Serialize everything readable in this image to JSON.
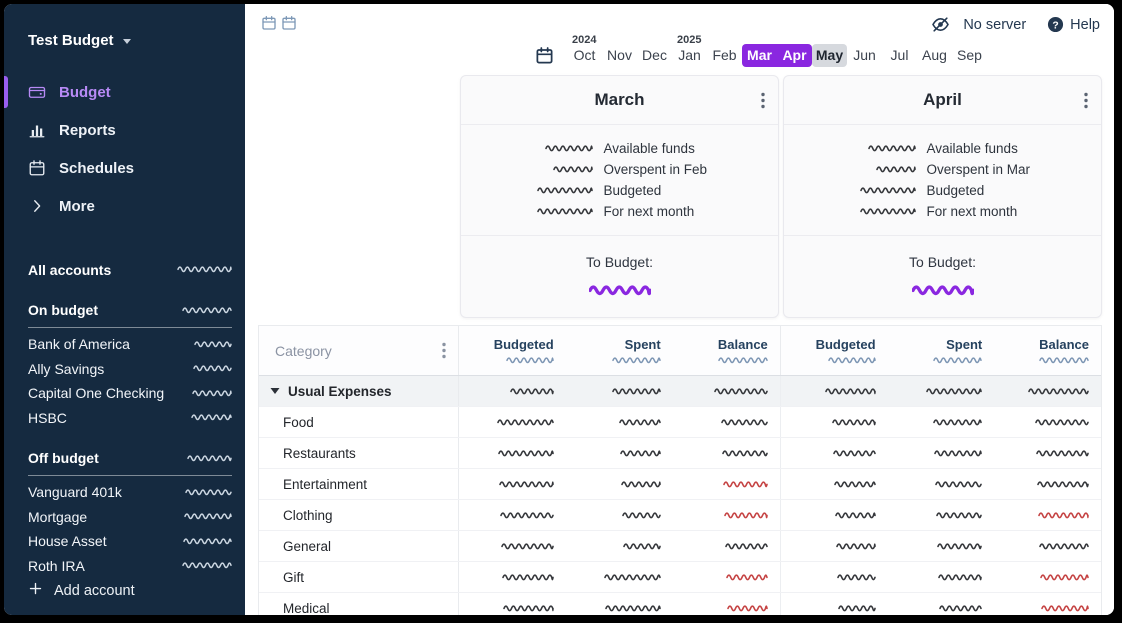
{
  "colors": {
    "sidebar_bg": "#152a40",
    "accent_purple": "#8a27e0",
    "active_purple_text": "#b78af5",
    "active_purple_bar": "#9a5ef0",
    "negative_red": "#c54343",
    "masked_dark": "#35373b",
    "masked_light": "#ccd7e2",
    "masked_header_blue": "#7c95b3",
    "masked_purple": "#8a27e0"
  },
  "sidebar": {
    "title": "Test Budget",
    "nav": [
      {
        "label": "Budget",
        "icon": "wallet-icon",
        "active": true
      },
      {
        "label": "Reports",
        "icon": "bar-chart-icon",
        "active": false
      },
      {
        "label": "Schedules",
        "icon": "calendar-icon",
        "active": false
      },
      {
        "label": "More",
        "icon": "chevron-right-icon",
        "active": false
      }
    ],
    "sections": [
      {
        "header": "All accounts",
        "value_masked": true,
        "divider": false,
        "accounts": []
      },
      {
        "header": "On budget",
        "value_masked": true,
        "divider": true,
        "accounts": [
          {
            "name": "Bank of America",
            "value_masked": true
          },
          {
            "name": "Ally Savings",
            "value_masked": true
          },
          {
            "name": "Capital One Checking",
            "value_masked": true
          },
          {
            "name": "HSBC",
            "value_masked": true
          }
        ]
      },
      {
        "header": "Off budget",
        "value_masked": true,
        "divider": true,
        "accounts": [
          {
            "name": "Vanguard 401k",
            "value_masked": true
          },
          {
            "name": "Mortgage",
            "value_masked": true
          },
          {
            "name": "House Asset",
            "value_masked": true
          },
          {
            "name": "Roth IRA",
            "value_masked": true
          }
        ]
      }
    ],
    "add_account_label": "Add account"
  },
  "topbar": {
    "server_status": "No server",
    "help_label": "Help"
  },
  "month_nav": {
    "months": [
      {
        "label": "Oct",
        "year_above": "2024",
        "selected": false,
        "highlight": false
      },
      {
        "label": "Nov",
        "selected": false,
        "highlight": false
      },
      {
        "label": "Dec",
        "selected": false,
        "highlight": false
      },
      {
        "label": "Jan",
        "year_above": "2025",
        "selected": false,
        "highlight": false
      },
      {
        "label": "Feb",
        "selected": false,
        "highlight": false
      },
      {
        "label": "Mar",
        "selected": true,
        "highlight": false
      },
      {
        "label": "Apr",
        "selected": true,
        "highlight": false
      },
      {
        "label": "May",
        "selected": false,
        "highlight": true
      },
      {
        "label": "Jun",
        "selected": false,
        "highlight": false
      },
      {
        "label": "Jul",
        "selected": false,
        "highlight": false
      },
      {
        "label": "Aug",
        "selected": false,
        "highlight": false
      },
      {
        "label": "Sep",
        "selected": false,
        "highlight": false
      }
    ]
  },
  "budget_cards": [
    {
      "title": "March",
      "summary_labels": [
        "Available funds",
        "Overspent in Feb",
        "Budgeted",
        "For next month"
      ],
      "summary_values_masked": true,
      "to_budget_label": "To Budget:",
      "to_budget_value_masked": true
    },
    {
      "title": "April",
      "summary_labels": [
        "Available funds",
        "Overspent in Mar",
        "Budgeted",
        "For next month"
      ],
      "summary_values_masked": true,
      "to_budget_label": "To Budget:",
      "to_budget_value_masked": true
    }
  ],
  "table": {
    "category_header": "Category",
    "value_columns": [
      "Budgeted",
      "Spent",
      "Balance"
    ],
    "header_totals_masked": true,
    "cells_masked": true,
    "rows": [
      {
        "name": "Usual Expenses",
        "is_group": true,
        "march": {
          "balance_negative": false
        },
        "april": {
          "balance_negative": false
        }
      },
      {
        "name": "Food",
        "is_group": false,
        "march": {
          "balance_negative": false
        },
        "april": {
          "balance_negative": false
        }
      },
      {
        "name": "Restaurants",
        "is_group": false,
        "march": {
          "balance_negative": false
        },
        "april": {
          "balance_negative": false
        }
      },
      {
        "name": "Entertainment",
        "is_group": false,
        "march": {
          "balance_negative": true
        },
        "april": {
          "balance_negative": false
        }
      },
      {
        "name": "Clothing",
        "is_group": false,
        "march": {
          "balance_negative": true
        },
        "april": {
          "balance_negative": true
        }
      },
      {
        "name": "General",
        "is_group": false,
        "march": {
          "balance_negative": false
        },
        "april": {
          "balance_negative": false
        }
      },
      {
        "name": "Gift",
        "is_group": false,
        "march": {
          "balance_negative": true
        },
        "april": {
          "balance_negative": true
        }
      },
      {
        "name": "Medical",
        "is_group": false,
        "march": {
          "balance_negative": true
        },
        "april": {
          "balance_negative": true
        }
      }
    ]
  }
}
